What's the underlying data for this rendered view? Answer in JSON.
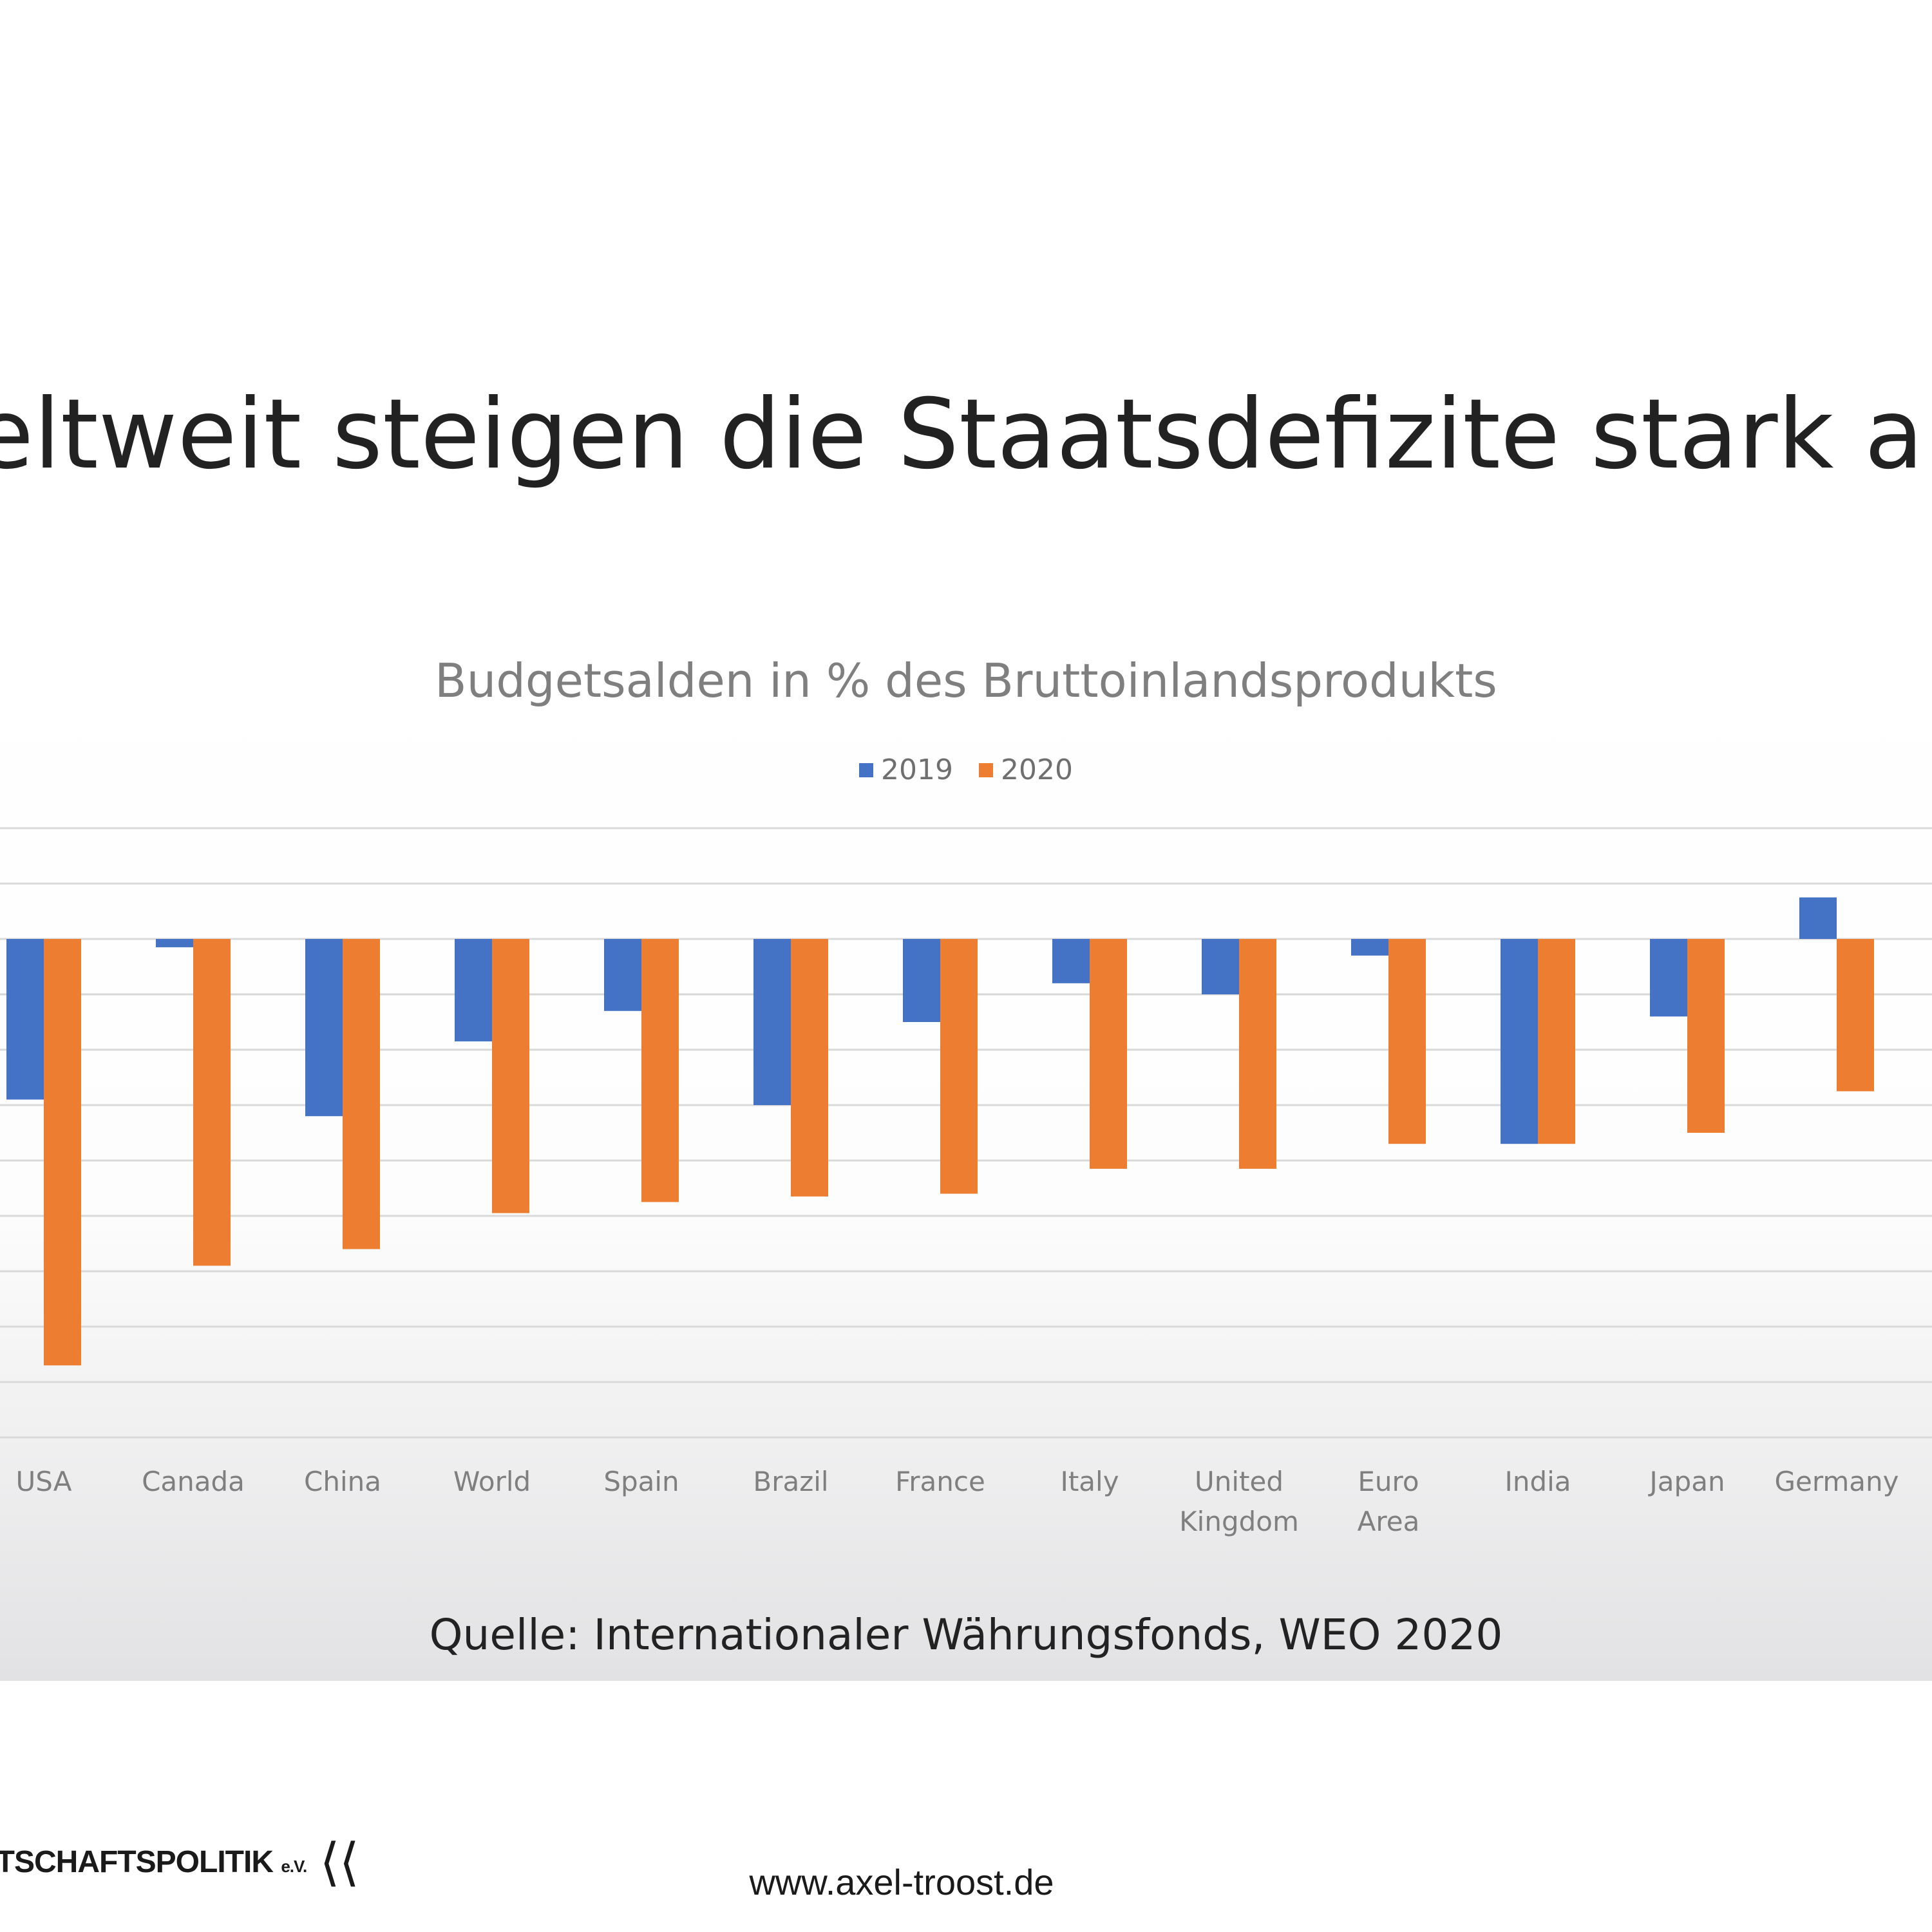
{
  "slide": {
    "title": "eltweit steigen die Staatsdefizite stark an",
    "source": "Quelle: Internationaler Währungsfonds, WEO 2020",
    "footer_logo_text": "RTSCHAFTSPOLITIK",
    "footer_logo_suffix": "e.V.",
    "footer_url": "www.axel-troost.de"
  },
  "colors": {
    "s2019": "#4472c4",
    "s2020": "#ed7d31",
    "grid": "#d9d9d9",
    "axis_text": "#7f7f7f"
  },
  "chart_data": {
    "type": "bar",
    "title": "Budgetsalden in % des Bruttoinlandsprodukts",
    "categories": [
      "USA",
      "Canada",
      "China",
      "World",
      "Spain",
      "Brazil",
      "France",
      "Italy",
      "United Kingdom",
      "Euro Area",
      "India",
      "Japan",
      "Germany"
    ],
    "series": [
      {
        "name": "2019",
        "values": [
          -5.8,
          -0.3,
          -6.4,
          -3.7,
          -2.6,
          -6.0,
          -3.0,
          -1.6,
          -2.0,
          -0.6,
          -7.4,
          -2.8,
          1.5
        ]
      },
      {
        "name": "2020",
        "values": [
          -15.4,
          -11.8,
          -11.2,
          -9.9,
          -9.5,
          -9.3,
          -9.2,
          -8.3,
          -8.3,
          -7.4,
          -7.4,
          -7.0,
          -5.5
        ]
      }
    ],
    "ylim": [
      -18,
      4
    ],
    "legend": "top-center",
    "grid": true
  }
}
